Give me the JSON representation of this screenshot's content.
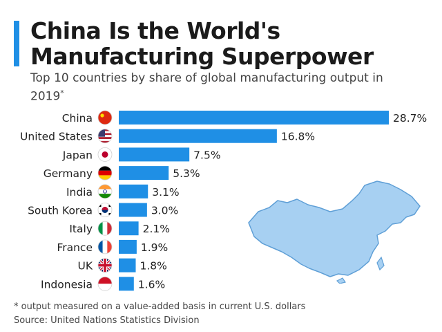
{
  "title": "China Is the World's\nManufacturing Superpower",
  "subtitle": "Top 10 countries by share of global manufacturing output in 2019",
  "subtitle_mark": "*",
  "footnote": "* output measured on a value-added basis in current U.S. dollars",
  "source": "Source: United Nations Statistics Division",
  "colors": {
    "bar": "#1f8fe5",
    "accent": "#1f8fe5",
    "map_fill": "#a7d0f2",
    "map_stroke": "#5f9fd6"
  },
  "chart_data": {
    "type": "bar",
    "orientation": "horizontal",
    "categories": [
      "China",
      "United States",
      "Japan",
      "Germany",
      "India",
      "South Korea",
      "Italy",
      "France",
      "UK",
      "Indonesia"
    ],
    "values": [
      28.7,
      16.8,
      7.5,
      5.3,
      3.1,
      3.0,
      2.1,
      1.9,
      1.8,
      1.6
    ],
    "value_labels": [
      "28.7%",
      "16.8%",
      "7.5%",
      "5.3%",
      "3.1%",
      "3.0%",
      "2.1%",
      "1.9%",
      "1.8%",
      "1.6%"
    ],
    "flags": [
      "flag-china-icon",
      "flag-united-states-icon",
      "flag-japan-icon",
      "flag-germany-icon",
      "flag-india-icon",
      "flag-south-korea-icon",
      "flag-italy-icon",
      "flag-france-icon",
      "flag-uk-icon",
      "flag-indonesia-icon"
    ],
    "unit": "%",
    "xlim": [
      0,
      28.7
    ],
    "grid": false,
    "legend": "none"
  }
}
